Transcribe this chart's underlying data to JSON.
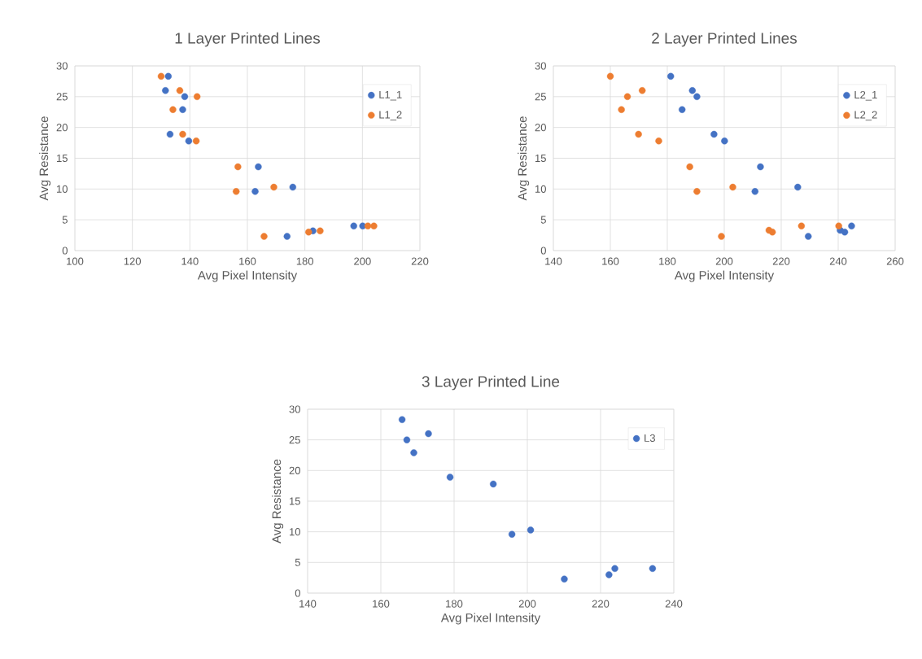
{
  "chart_data": [
    {
      "type": "scatter",
      "title": "1 Layer Printed Lines",
      "xlabel": "Avg Pixel Intensity",
      "ylabel": "Avg Resistance",
      "xlim": [
        100,
        220
      ],
      "ylim": [
        0,
        30
      ],
      "xticks": [
        100,
        120,
        140,
        160,
        180,
        200,
        220
      ],
      "yticks": [
        0,
        5,
        10,
        15,
        20,
        25,
        30
      ],
      "grid": true,
      "legend": "top right",
      "marker": "circle",
      "series": [
        {
          "name": "L1_1",
          "color": "#4472c4",
          "x": [
            132.5,
            131.5,
            138.2,
            137.5,
            133.1,
            139.6,
            163.8,
            162.7,
            175.8,
            173.8,
            182.8,
            197.0,
            200.1
          ],
          "values": [
            28.3,
            26.0,
            25.0,
            22.9,
            18.9,
            17.8,
            13.6,
            9.6,
            10.3,
            2.3,
            3.2,
            4.0,
            4.0
          ]
        },
        {
          "name": "L1_2",
          "color": "#ed7d31",
          "x": [
            130.0,
            136.5,
            142.5,
            134.1,
            137.5,
            142.2,
            156.7,
            156.1,
            169.2,
            165.8,
            181.3,
            185.3,
            201.9,
            204.0
          ],
          "values": [
            28.3,
            26.0,
            25.0,
            22.9,
            18.9,
            17.8,
            13.6,
            9.6,
            10.3,
            2.3,
            3.0,
            3.2,
            4.0,
            4.0
          ]
        }
      ]
    },
    {
      "type": "scatter",
      "title": "2 Layer Printed Lines",
      "xlabel": "Avg Pixel Intensity",
      "ylabel": "Avg Resistance",
      "xlim": [
        140,
        260
      ],
      "ylim": [
        0,
        30
      ],
      "xticks": [
        140,
        160,
        180,
        200,
        220,
        240,
        260
      ],
      "yticks": [
        0,
        5,
        10,
        15,
        20,
        25,
        30
      ],
      "grid": true,
      "legend": "top right",
      "marker": "circle",
      "series": [
        {
          "name": "L2_1",
          "color": "#4472c4",
          "x": [
            181.2,
            188.8,
            190.4,
            185.2,
            196.4,
            200.1,
            212.7,
            210.8,
            225.8,
            229.5,
            240.7,
            242.3,
            244.7
          ],
          "values": [
            28.3,
            26.0,
            25.0,
            22.9,
            18.9,
            17.8,
            13.6,
            9.6,
            10.3,
            2.3,
            3.3,
            3.0,
            4.0
          ]
        },
        {
          "name": "L2_2",
          "color": "#ed7d31",
          "x": [
            160.0,
            171.2,
            166.0,
            163.9,
            169.9,
            177.0,
            187.9,
            190.4,
            203.0,
            199.0,
            215.7,
            216.9,
            227.1,
            240.2
          ],
          "values": [
            28.3,
            26.0,
            25.0,
            22.9,
            18.9,
            17.8,
            13.6,
            9.6,
            10.3,
            2.3,
            3.3,
            3.0,
            4.0,
            4.0
          ]
        }
      ]
    },
    {
      "type": "scatter",
      "title": "3 Layer Printed Line",
      "xlabel": "Avg Pixel Intensity",
      "ylabel": "Avg Resistance",
      "xlim": [
        140,
        240
      ],
      "ylim": [
        0,
        30
      ],
      "xticks": [
        140,
        160,
        180,
        200,
        220,
        240
      ],
      "yticks": [
        0,
        5,
        10,
        15,
        20,
        25,
        30
      ],
      "grid": true,
      "legend": "top right",
      "marker": "circle",
      "series": [
        {
          "name": "L3",
          "color": "#4472c4",
          "x": [
            165.8,
            167.1,
            169.0,
            173.0,
            178.9,
            190.7,
            195.8,
            200.9,
            210.1,
            222.3,
            223.9,
            234.2
          ],
          "values": [
            28.3,
            25.0,
            22.9,
            26.0,
            18.9,
            17.8,
            9.6,
            10.3,
            2.3,
            3.0,
            4.0,
            4.0
          ]
        }
      ]
    }
  ]
}
